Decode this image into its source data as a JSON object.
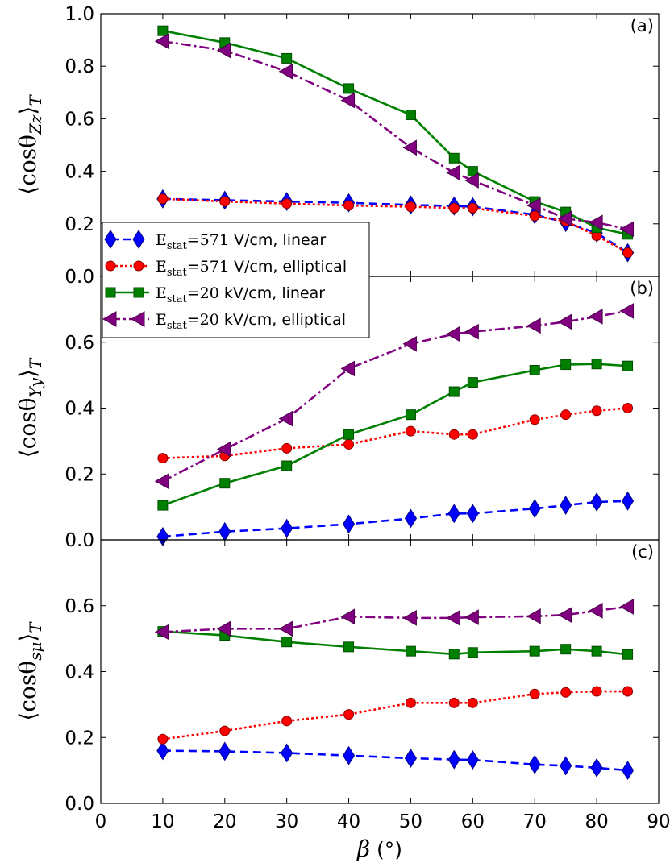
{
  "chart_data": {
    "type": "line",
    "x": [
      10,
      20,
      30,
      40,
      50,
      57,
      60,
      70,
      75,
      80,
      85
    ],
    "xlabel": "β (°)",
    "xlim": [
      0,
      90
    ],
    "xticks": [
      "0",
      "10",
      "20",
      "30",
      "40",
      "50",
      "60",
      "70",
      "80",
      "90"
    ],
    "legend": {
      "location": "top-left of panel (b)",
      "entries": [
        "E_stat=571 V/cm, linear",
        "E_stat=571 V/cm, elliptical",
        "E_stat=20 kV/cm, linear",
        "E_stat=20 kV/cm, elliptical"
      ]
    },
    "series_styles": [
      {
        "name": "E_stat=571 V/cm, linear",
        "color": "#0000ff",
        "marker": "diamond",
        "dash": "10,6",
        "edge": "#00008b"
      },
      {
        "name": "E_stat=571 V/cm, elliptical",
        "color": "#ff0000",
        "marker": "circle",
        "dash": "3,3",
        "edge": "#8b0000"
      },
      {
        "name": "E_stat=20 kV/cm, linear",
        "color": "#008000",
        "marker": "square",
        "dash": "",
        "edge": "#004d00"
      },
      {
        "name": "E_stat=20 kV/cm, elliptical",
        "color": "#800080",
        "marker": "triangle-left",
        "dash": "12,4,3,4",
        "edge": "#4b004b"
      }
    ],
    "panels": [
      {
        "tag": "(a)",
        "ylabel": "⟨cosθZz⟩T",
        "ylim": [
          0.0,
          1.0
        ],
        "yticks": [
          "0.0",
          "0.2",
          "0.4",
          "0.6",
          "0.8",
          "1.0"
        ],
        "series": [
          {
            "name": "E_stat=571 V/cm, linear",
            "values": [
              0.295,
              0.29,
              0.285,
              0.28,
              0.272,
              0.268,
              0.265,
              0.235,
              0.205,
              0.165,
              0.09
            ]
          },
          {
            "name": "E_stat=571 V/cm, elliptical",
            "values": [
              0.295,
              0.285,
              0.277,
              0.27,
              0.265,
              0.26,
              0.26,
              0.23,
              0.21,
              0.155,
              0.09
            ]
          },
          {
            "name": "E_stat=20 kV/cm, linear",
            "values": [
              0.935,
              0.89,
              0.83,
              0.715,
              0.615,
              0.45,
              0.4,
              0.285,
              0.245,
              0.185,
              0.16
            ]
          },
          {
            "name": "E_stat=20 kV/cm, elliptical",
            "values": [
              0.895,
              0.86,
              0.78,
              0.67,
              0.49,
              0.395,
              0.365,
              0.27,
              0.22,
              0.205,
              0.18
            ]
          }
        ]
      },
      {
        "tag": "(b)",
        "ylabel": "⟨cosθYy⟩T",
        "ylim": [
          0.0,
          0.8
        ],
        "yticks": [
          "0.0",
          "0.2",
          "0.4",
          "0.6"
        ],
        "series": [
          {
            "name": "E_stat=571 V/cm, linear",
            "values": [
              0.01,
              0.025,
              0.035,
              0.048,
              0.065,
              0.08,
              0.08,
              0.095,
              0.105,
              0.115,
              0.118
            ]
          },
          {
            "name": "E_stat=571 V/cm, elliptical",
            "values": [
              0.248,
              0.255,
              0.278,
              0.29,
              0.33,
              0.32,
              0.32,
              0.365,
              0.38,
              0.392,
              0.4
            ]
          },
          {
            "name": "E_stat=20 kV/cm, linear",
            "values": [
              0.105,
              0.172,
              0.225,
              0.32,
              0.38,
              0.45,
              0.478,
              0.515,
              0.532,
              0.534,
              0.528
            ]
          },
          {
            "name": "E_stat=20 kV/cm, elliptical",
            "values": [
              0.178,
              0.275,
              0.368,
              0.52,
              0.595,
              0.625,
              0.632,
              0.65,
              0.662,
              0.678,
              0.695
            ]
          }
        ]
      },
      {
        "tag": "(c)",
        "ylabel": "⟨cosθsμ⟩T",
        "ylim": [
          0.0,
          0.8
        ],
        "yticks": [
          "0.0",
          "0.2",
          "0.4",
          "0.6"
        ],
        "series": [
          {
            "name": "E_stat=571 V/cm, linear",
            "values": [
              0.16,
              0.158,
              0.153,
              0.145,
              0.137,
              0.133,
              0.132,
              0.118,
              0.114,
              0.108,
              0.1
            ]
          },
          {
            "name": "E_stat=571 V/cm, elliptical",
            "values": [
              0.195,
              0.22,
              0.25,
              0.27,
              0.305,
              0.305,
              0.305,
              0.332,
              0.337,
              0.34,
              0.34
            ]
          },
          {
            "name": "E_stat=20 kV/cm, linear",
            "values": [
              0.522,
              0.51,
              0.49,
              0.475,
              0.462,
              0.453,
              0.458,
              0.462,
              0.468,
              0.462,
              0.452
            ]
          },
          {
            "name": "E_stat=20 kV/cm, elliptical",
            "values": [
              0.52,
              0.53,
              0.53,
              0.567,
              0.563,
              0.563,
              0.565,
              0.568,
              0.572,
              0.585,
              0.597
            ]
          }
        ]
      }
    ]
  },
  "legend_labels": [
    {
      "sub": "stat",
      "value": "=571",
      "unit": " V/cm, linear"
    },
    {
      "sub": "stat",
      "value": "=571",
      "unit": " V/cm, elliptical"
    },
    {
      "sub": "stat",
      "value": "=20",
      "unit": " kV/cm, linear"
    },
    {
      "sub": "stat",
      "value": "=20",
      "unit": " kV/cm, elliptical"
    }
  ],
  "axis_labels": {
    "xlabel_beta": "β",
    "xlabel_unit": "(°)",
    "ylabels": [
      {
        "main": "cosθ",
        "sub": "Zz",
        "outer": "T"
      },
      {
        "main": "cosθ",
        "sub": "Yy",
        "outer": "T"
      },
      {
        "main": "cosθ",
        "sub": "sμ",
        "outer": "T"
      }
    ]
  }
}
